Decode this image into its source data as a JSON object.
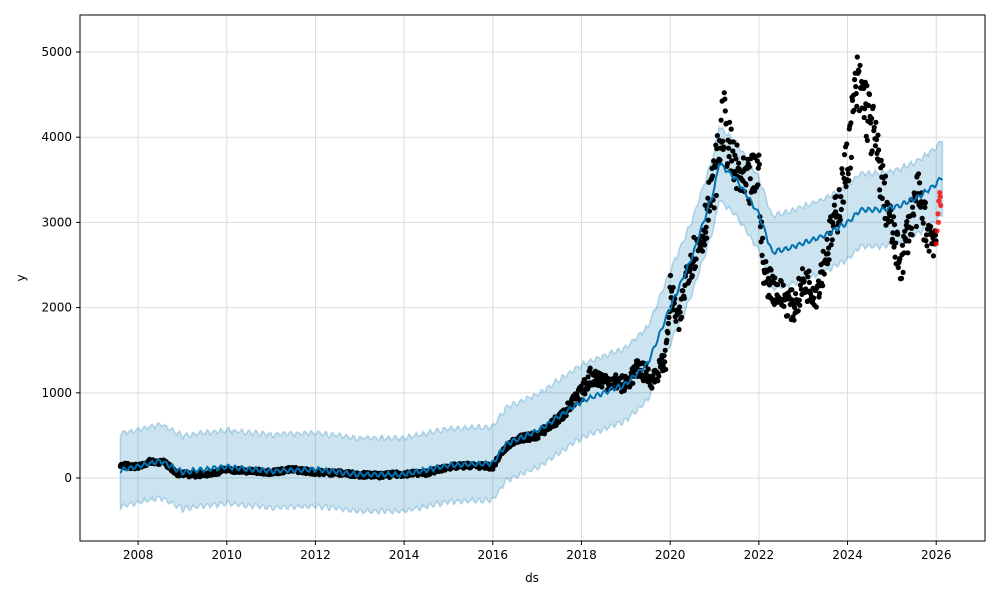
{
  "chart_data": {
    "type": "scatter",
    "title": "",
    "xlabel": "ds",
    "ylabel": "y",
    "xlim": [
      2006.69,
      2027.1
    ],
    "ylim": [
      -739,
      5434
    ],
    "grid": true,
    "x_ticks": [
      2008,
      2010,
      2012,
      2014,
      2016,
      2018,
      2020,
      2022,
      2024,
      2026
    ],
    "y_ticks": [
      0,
      1000,
      2000,
      3000,
      4000,
      5000
    ],
    "colors": {
      "observed": "#000000",
      "future_observed": "#ff0000",
      "forecast": "#0072B2",
      "interval": "#0072B2"
    },
    "band_halfwidth": 430,
    "observed": [
      [
        2007.6,
        150
      ],
      [
        2008.0,
        130
      ],
      [
        2008.3,
        200
      ],
      [
        2008.6,
        180
      ],
      [
        2008.9,
        50
      ],
      [
        2009.3,
        40
      ],
      [
        2009.7,
        60
      ],
      [
        2010.0,
        100
      ],
      [
        2010.5,
        80
      ],
      [
        2011.0,
        70
      ],
      [
        2011.5,
        100
      ],
      [
        2012.0,
        70
      ],
      [
        2012.5,
        60
      ],
      [
        2013.0,
        40
      ],
      [
        2013.5,
        30
      ],
      [
        2014.0,
        50
      ],
      [
        2014.5,
        60
      ],
      [
        2015.0,
        130
      ],
      [
        2015.5,
        150
      ],
      [
        2016.0,
        130
      ],
      [
        2016.2,
        300
      ],
      [
        2016.5,
        450
      ],
      [
        2017.0,
        500
      ],
      [
        2017.5,
        700
      ],
      [
        2018.0,
        1000
      ],
      [
        2018.2,
        1200
      ],
      [
        2018.5,
        1150
      ],
      [
        2019.0,
        1100
      ],
      [
        2019.3,
        1300
      ],
      [
        2019.6,
        1150
      ],
      [
        2019.9,
        1400
      ],
      [
        2020.0,
        2200
      ],
      [
        2020.2,
        1800
      ],
      [
        2020.4,
        2500
      ],
      [
        2020.7,
        2800
      ],
      [
        2021.0,
        3500
      ],
      [
        2021.2,
        4200
      ],
      [
        2021.4,
        3700
      ],
      [
        2021.7,
        3400
      ],
      [
        2022.0,
        3600
      ],
      [
        2022.1,
        2400
      ],
      [
        2022.4,
        2200
      ],
      [
        2022.8,
        2000
      ],
      [
        2023.0,
        2300
      ],
      [
        2023.3,
        2200
      ],
      [
        2023.5,
        2600
      ],
      [
        2023.8,
        3200
      ],
      [
        2024.0,
        3700
      ],
      [
        2024.2,
        4600
      ],
      [
        2024.4,
        4400
      ],
      [
        2024.6,
        4000
      ],
      [
        2024.8,
        3400
      ],
      [
        2025.0,
        2900
      ],
      [
        2025.2,
        2500
      ],
      [
        2025.4,
        3000
      ],
      [
        2025.6,
        3300
      ],
      [
        2025.8,
        2900
      ],
      [
        2026.0,
        2800
      ]
    ],
    "future_observed": [
      [
        2026.0,
        2750
      ],
      [
        2026.02,
        2900
      ],
      [
        2026.04,
        3100
      ],
      [
        2026.05,
        3000
      ],
      [
        2026.06,
        3250
      ],
      [
        2026.08,
        3350
      ],
      [
        2026.09,
        3300
      ],
      [
        2026.1,
        3200
      ]
    ],
    "forecast": [
      [
        2007.6,
        90
      ],
      [
        2008.5,
        200
      ],
      [
        2009.0,
        70
      ],
      [
        2010.0,
        130
      ],
      [
        2011.0,
        80
      ],
      [
        2012.0,
        100
      ],
      [
        2013.0,
        40
      ],
      [
        2014.0,
        40
      ],
      [
        2015.0,
        150
      ],
      [
        2016.0,
        170
      ],
      [
        2016.3,
        400
      ],
      [
        2017.0,
        550
      ],
      [
        2018.0,
        900
      ],
      [
        2019.0,
        1100
      ],
      [
        2019.5,
        1350
      ],
      [
        2020.0,
        2000
      ],
      [
        2020.5,
        2600
      ],
      [
        2021.0,
        3400
      ],
      [
        2021.1,
        3700
      ],
      [
        2021.5,
        3500
      ],
      [
        2022.0,
        3100
      ],
      [
        2022.3,
        2650
      ],
      [
        2022.7,
        2700
      ],
      [
        2023.5,
        2850
      ],
      [
        2024.0,
        3000
      ],
      [
        2024.3,
        3150
      ],
      [
        2024.8,
        3150
      ],
      [
        2025.2,
        3200
      ],
      [
        2025.6,
        3300
      ],
      [
        2026.0,
        3450
      ],
      [
        2026.15,
        3550
      ]
    ]
  }
}
